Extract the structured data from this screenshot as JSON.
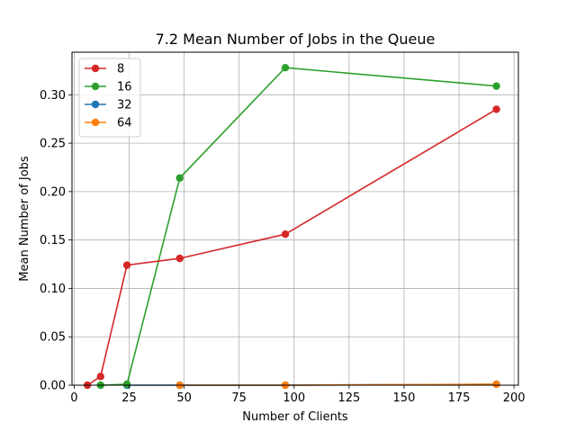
{
  "chart_data": {
    "type": "line",
    "title": "7.2 Mean Number of Jobs in the Queue",
    "xlabel": "Number of Clients",
    "ylabel": "Mean Number of Jobs",
    "xlim": [
      -1,
      202
    ],
    "ylim": [
      0,
      0.344
    ],
    "xticks": [
      0,
      25,
      50,
      75,
      100,
      125,
      150,
      175,
      200
    ],
    "yticks": [
      0.0,
      0.05,
      0.1,
      0.15,
      0.2,
      0.25,
      0.3
    ],
    "xtick_labels": [
      "0",
      "25",
      "50",
      "75",
      "100",
      "125",
      "150",
      "175",
      "200"
    ],
    "ytick_labels": [
      "0.00",
      "0.05",
      "0.10",
      "0.15",
      "0.20",
      "0.25",
      "0.30"
    ],
    "grid": true,
    "legend_position": "top-left",
    "series": [
      {
        "name": "8",
        "color": "#d62728",
        "x": [
          6,
          12,
          24,
          48,
          96,
          192
        ],
        "y": [
          0.0,
          0.009,
          0.124,
          0.131,
          0.156,
          0.285
        ]
      },
      {
        "name": "16",
        "color": "#2ca02c",
        "x": [
          12,
          24,
          48,
          96,
          192
        ],
        "y": [
          0.0,
          0.001,
          0.214,
          0.328,
          0.309
        ]
      },
      {
        "name": "32",
        "color": "#1f77b4",
        "x": [
          24,
          48,
          96,
          192
        ],
        "y": [
          0.0,
          0.0,
          0.0,
          0.001
        ]
      },
      {
        "name": "64",
        "color": "#ff7f0e",
        "x": [
          48,
          96,
          192
        ],
        "y": [
          0.0,
          0.0,
          0.001
        ]
      }
    ],
    "draw_order": [
      2,
      3,
      1,
      0
    ]
  }
}
